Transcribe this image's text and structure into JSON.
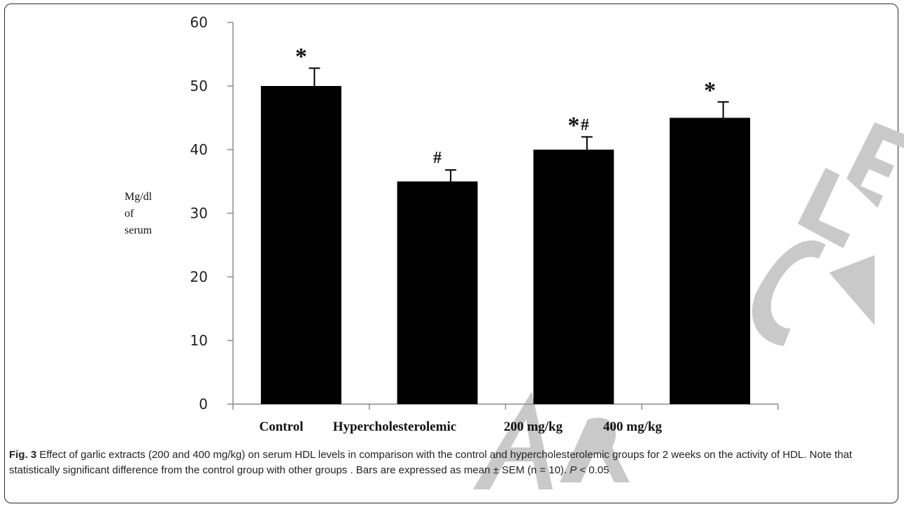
{
  "chart_data": {
    "type": "bar",
    "categories": [
      "Control",
      "Hypercholesterolemic",
      "200 mg/kg",
      "400 mg/kg"
    ],
    "values": [
      50,
      35,
      40,
      45
    ],
    "errors": [
      2.8,
      1.8,
      2.0,
      2.5
    ],
    "annotations": [
      "*",
      "#",
      "*#",
      "*"
    ],
    "ylabel_lines": [
      "Mg/dl",
      "of",
      "serum"
    ],
    "yticks": [
      0,
      10,
      20,
      30,
      40,
      50,
      60
    ],
    "ylim": [
      0,
      60
    ],
    "bar_color": "#000000",
    "grid": false,
    "legend": "none"
  },
  "caption": {
    "fig_label": "Fig. 3",
    "text_1": " Effect of garlic extracts (200 and 400 mg/kg) on serum HDL levels in comparison with the control and hypercholesterolemic groups for 2 weeks on the activity of HDL. Note that statistically significant difference from the control group with other groups . Bars are expressed as mean ± SEM (n = 10). ",
    "p_symbol": "P",
    "text_2": " < 0.05"
  },
  "watermark": {
    "text": "ARTICLE",
    "color": "#d0d0d0"
  }
}
